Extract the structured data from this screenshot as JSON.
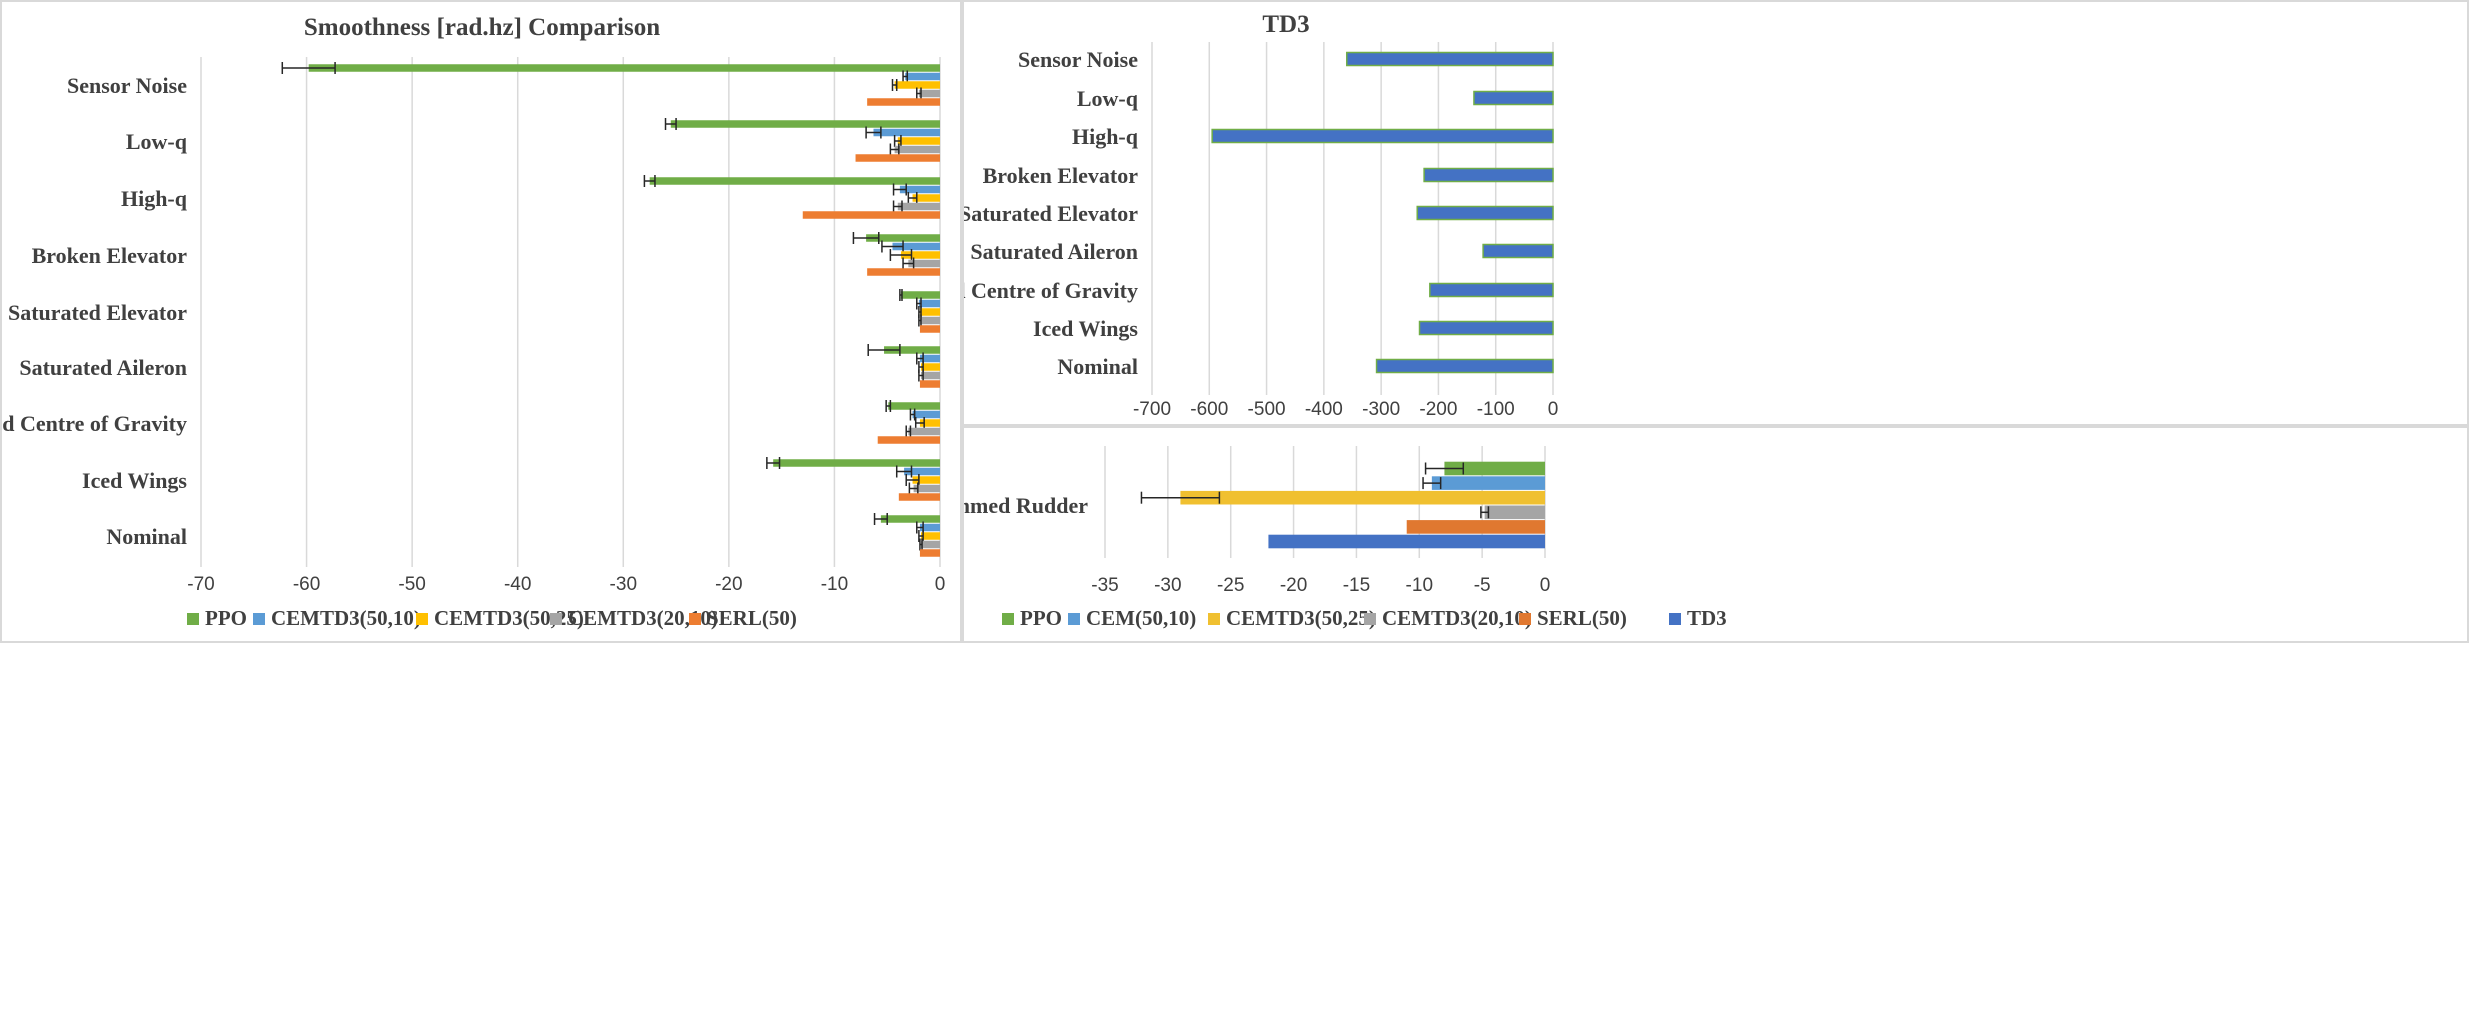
{
  "chart_data": [
    {
      "type": "bar",
      "orientation": "horizontal",
      "title": "Smoothness [rad.hz] Comparison",
      "categories": [
        "Sensor Noise",
        "Low-q",
        "High-q",
        "Broken Elevator",
        "Saturated Elevator",
        "Saturated Aileron",
        "Shifted Centre of Gravity",
        "Iced Wings",
        "Nominal"
      ],
      "xlim": [
        -70,
        0
      ],
      "xticks": [
        "-70",
        "-60",
        "-50",
        "-40",
        "-30",
        "-20",
        "-10",
        "0"
      ],
      "grid": true,
      "legend_position": "bottom",
      "series": [
        {
          "name": "PPO",
          "color": "#70ad47",
          "values": [
            -59.8,
            -25.5,
            -27.5,
            -7.0,
            -3.7,
            -5.3,
            -4.9,
            -15.8,
            -5.6
          ],
          "errors": [
            2.5,
            0.5,
            0.5,
            1.2,
            0.1,
            1.5,
            0.2,
            0.6,
            0.6
          ]
        },
        {
          "name": "CEMTD3(50,10)",
          "color": "#5b9bd5",
          "values": [
            -3.3,
            -6.3,
            -3.8,
            -4.5,
            -2.0,
            -1.9,
            -2.6,
            -3.4,
            -1.9
          ],
          "errors": [
            0.2,
            0.7,
            0.6,
            1.0,
            0.2,
            0.3,
            0.2,
            0.7,
            0.3
          ]
        },
        {
          "name": "CEMTD3(50,25)",
          "color": "#ffc000",
          "values": [
            -4.3,
            -4.0,
            -2.6,
            -3.7,
            -1.9,
            -1.8,
            -1.9,
            -2.6,
            -1.8
          ],
          "errors": [
            0.2,
            0.3,
            0.4,
            1.0,
            0.1,
            0.2,
            0.4,
            0.6,
            0.2
          ]
        },
        {
          "name": "CEMTD3(20,10)",
          "color": "#a5a5a5",
          "values": [
            -2.0,
            -4.3,
            -4.0,
            -3.0,
            -1.9,
            -1.8,
            -3.0,
            -2.5,
            -1.8
          ],
          "errors": [
            0.2,
            0.4,
            0.4,
            0.5,
            0.1,
            0.2,
            0.2,
            0.4,
            0.1
          ]
        },
        {
          "name": "SERL(50)",
          "color": "#ed7d31",
          "values": [
            -6.9,
            -8.0,
            -13.0,
            -6.9,
            -1.9,
            -1.9,
            -5.9,
            -3.9,
            -1.9
          ],
          "errors": [
            0,
            0,
            0,
            0,
            0,
            0,
            0,
            0,
            0
          ]
        }
      ]
    },
    {
      "type": "bar",
      "orientation": "horizontal",
      "title": "TD3",
      "categories": [
        "Sensor Noise",
        "Low-q",
        "High-q",
        "Broken Elevator",
        "Saturated Elevator",
        "Saturated Aileron",
        "Shifted Centre of Gravity",
        "Iced Wings",
        "Nominal"
      ],
      "xlim": [
        -700,
        0
      ],
      "xticks": [
        "-700",
        "-600",
        "-500",
        "-400",
        "-300",
        "-200",
        "-100",
        "0"
      ],
      "grid": true,
      "series": [
        {
          "name": "TD3",
          "color": "#4472c4",
          "values": [
            -360,
            -138,
            -595,
            -225,
            -237,
            -122,
            -215,
            -233,
            -308
          ]
        }
      ]
    },
    {
      "type": "bar",
      "orientation": "horizontal",
      "categories": [
        "Jammed Rudder"
      ],
      "xlim": [
        -35,
        0
      ],
      "xticks": [
        "-35",
        "-30",
        "-25",
        "-20",
        "-15",
        "-10",
        "-5",
        "0"
      ],
      "grid": true,
      "legend_position": "bottom",
      "series": [
        {
          "name": "PPO",
          "color": "#70ad47",
          "values": [
            -8.0
          ],
          "errors": [
            1.5
          ]
        },
        {
          "name": "CEM(50,10)",
          "color": "#5b9bd5",
          "values": [
            -9.0
          ],
          "errors": [
            0.7
          ]
        },
        {
          "name": "CEMTD3(50,25)",
          "color": "#f0c030",
          "values": [
            -29.0
          ],
          "errors": [
            3.1
          ]
        },
        {
          "name": "CEMTD3(20,10)",
          "color": "#a5a5a5",
          "values": [
            -4.8
          ],
          "errors": [
            0.3
          ]
        },
        {
          "name": "SERL(50)",
          "color": "#e07830",
          "values": [
            -11.0
          ],
          "errors": [
            0
          ]
        },
        {
          "name": "TD3",
          "color": "#4472c4",
          "values": [
            -22.0
          ],
          "errors": [
            0
          ]
        }
      ]
    }
  ]
}
